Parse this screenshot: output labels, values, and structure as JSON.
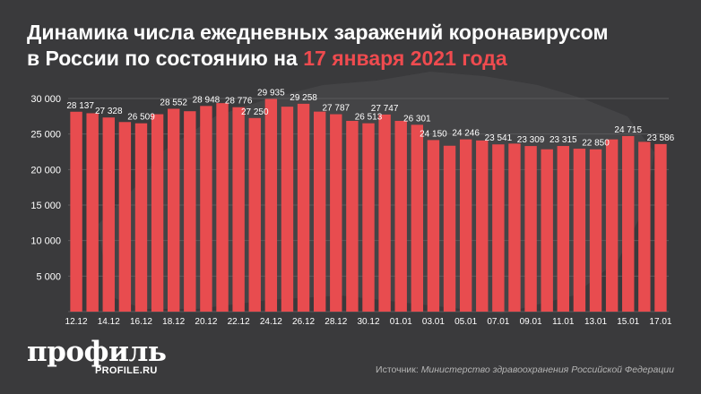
{
  "title": {
    "line1": "Динамика числа ежедневных заражений коронавирусом",
    "line2_prefix": "в России по состоянию на",
    "line2_accent": "17 января 2021 года"
  },
  "brand": {
    "logo": "профиль",
    "site": "PROFILE.RU"
  },
  "source": {
    "label": "Источник:",
    "text": "Министерство здравоохранения Российской Федерации"
  },
  "colors": {
    "background": "#3a3a3c",
    "bar": "#e84c4f",
    "accent": "#ef4b4f",
    "grid": "#5a5a5c",
    "text": "#ffffff"
  },
  "chart_data": {
    "type": "bar",
    "ylim": [
      0,
      30000
    ],
    "yticks": [
      {
        "value": 5000,
        "label": "5 000"
      },
      {
        "value": 10000,
        "label": "10 000"
      },
      {
        "value": 15000,
        "label": "15 000"
      },
      {
        "value": 20000,
        "label": "20 000"
      },
      {
        "value": 25000,
        "label": "25 000"
      },
      {
        "value": 30000,
        "label": "30 000"
      }
    ],
    "categories": [
      "12.12",
      "13.12",
      "14.12",
      "15.12",
      "16.12",
      "17.12",
      "18.12",
      "19.12",
      "20.12",
      "21.12",
      "22.12",
      "23.12",
      "24.12",
      "25.12",
      "26.12",
      "27.12",
      "28.12",
      "29.12",
      "30.12",
      "31.12",
      "01.01",
      "02.01",
      "03.01",
      "04.01",
      "05.01",
      "06.01",
      "07.01",
      "08.01",
      "09.01",
      "10.01",
      "11.01",
      "12.01",
      "13.01",
      "14.01",
      "15.01",
      "16.01",
      "17.01"
    ],
    "values": [
      28137,
      27927,
      27328,
      26689,
      26509,
      27787,
      28552,
      28209,
      28948,
      29350,
      28776,
      27250,
      29935,
      28850,
      29258,
      28154,
      27787,
      26850,
      26513,
      27747,
      26850,
      26301,
      24150,
      23351,
      24246,
      24092,
      23541,
      23652,
      23309,
      22851,
      23315,
      22934,
      22850,
      24246,
      24715,
      23900,
      23586
    ],
    "value_labels": [
      "28 137",
      "",
      "27 328",
      "",
      "26 509",
      "",
      "28 552",
      "",
      "28 948",
      "",
      "28 776",
      "27 250",
      "29 935",
      "",
      "29 258",
      "",
      "27 787",
      "",
      "26 513",
      "27 747",
      "",
      "26 301",
      "24 150",
      "",
      "24 246",
      "",
      "23 541",
      "",
      "23 309",
      "",
      "23 315",
      "",
      "22 850",
      "",
      "24 715",
      "",
      "23 586"
    ],
    "x_tick_labels": [
      "12.12",
      "",
      "14.12",
      "",
      "16.12",
      "",
      "18.12",
      "",
      "20.12",
      "",
      "22.12",
      "",
      "24.12",
      "",
      "26.12",
      "",
      "28.12",
      "",
      "30.12",
      "",
      "01.01",
      "",
      "03.01",
      "",
      "05.01",
      "",
      "07.01",
      "",
      "09.01",
      "",
      "11.01",
      "",
      "13.01",
      "",
      "15.01",
      "",
      "17.01"
    ],
    "grid": true
  }
}
